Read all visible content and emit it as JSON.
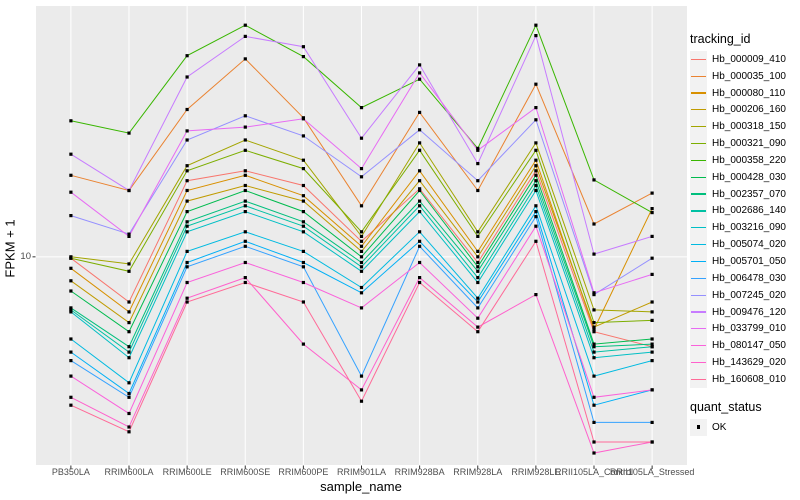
{
  "figure": {
    "y_axis": {
      "label": "FPKM + 1",
      "tick": "10"
    },
    "x_axis": {
      "label": "sample_name"
    },
    "legend": {
      "tracking_title": "tracking_id",
      "quant_title": "quant_status",
      "quant_item": "OK"
    },
    "colors": {
      "panel_bg": "#EBEBEB",
      "grid": "#FFFFFF",
      "point": "#000000",
      "tick_mark": "#333333",
      "tick_text": "#4D4D4D",
      "legend_key_bg": "#F2F2F2"
    }
  },
  "chart_data": {
    "type": "line",
    "title": "",
    "xlabel": "sample_name",
    "ylabel": "FPKM + 1",
    "y_scale": "log10",
    "y_ticks": [
      10
    ],
    "ylim": [
      2.2,
      62
    ],
    "grid": true,
    "legend_position": "right",
    "point_shape": "black-square",
    "quant_status_legend": {
      "title": "quant_status",
      "items": [
        "OK"
      ]
    },
    "x_categories": [
      "PB350LA",
      "RRIM600LA",
      "RRIM600LE",
      "RRIM600SE",
      "RRIM600PE",
      "RRIM901LA",
      "RRIM928BA",
      "RRIM928LA",
      "RRIM928LE",
      "RRII105LA_Control",
      "RRII105LA_Stressed"
    ],
    "series": [
      {
        "name": "Hb_000009_410",
        "color": "#F8766D",
        "values": [
          9.9,
          7.2,
          17.4,
          18.7,
          16.8,
          11.2,
          16.4,
          9.6,
          18.7,
          5.8,
          5.2
        ]
      },
      {
        "name": "Hb_000035_100",
        "color": "#EA8331",
        "values": [
          18.1,
          16.2,
          29.2,
          42.2,
          27.5,
          14.5,
          28.6,
          16.2,
          35.1,
          12.7,
          15.9
        ]
      },
      {
        "name": "Hb_000080_110",
        "color": "#D89000",
        "values": [
          9.2,
          6.7,
          16.2,
          18.1,
          15.6,
          10.8,
          18.7,
          10.4,
          20.2,
          5.9,
          14.2
        ]
      },
      {
        "name": "Hb_000206_160",
        "color": "#C09B00",
        "values": [
          8.4,
          6.2,
          15.0,
          16.8,
          15.0,
          10.4,
          17.4,
          10.0,
          19.4,
          6.0,
          7.2
        ]
      },
      {
        "name": "Hb_000318_150",
        "color": "#A3A500",
        "values": [
          10.0,
          9.5,
          19.4,
          23.4,
          20.2,
          11.6,
          22.9,
          12.0,
          22.9,
          6.8,
          6.7
        ]
      },
      {
        "name": "Hb_000321_090",
        "color": "#7CAE00",
        "values": [
          9.9,
          9.0,
          18.7,
          21.7,
          19.0,
          12.0,
          21.7,
          11.6,
          21.7,
          6.2,
          6.3
        ]
      },
      {
        "name": "Hb_000358_220",
        "color": "#39B600",
        "values": [
          26.9,
          24.6,
          43.2,
          53.9,
          42.9,
          29.6,
          36.4,
          22.0,
          53.9,
          17.5,
          13.8
        ]
      },
      {
        "name": "Hb_000428_030",
        "color": "#00BB4E",
        "values": [
          7.8,
          5.8,
          13.9,
          16.2,
          13.9,
          10.0,
          16.2,
          9.3,
          18.1,
          5.3,
          5.5
        ]
      },
      {
        "name": "Hb_002357_070",
        "color": "#00BF7D",
        "values": [
          6.9,
          5.2,
          12.9,
          15.0,
          12.9,
          9.6,
          15.0,
          9.0,
          17.4,
          5.2,
          5.3
        ]
      },
      {
        "name": "Hb_002686_140",
        "color": "#00C1A3",
        "values": [
          6.8,
          5.0,
          12.5,
          14.5,
          12.5,
          9.3,
          14.5,
          8.6,
          16.8,
          5.0,
          5.2
        ]
      },
      {
        "name": "Hb_003216_090",
        "color": "#00BFC4",
        "values": [
          6.7,
          4.8,
          12.0,
          13.9,
          12.0,
          9.0,
          13.9,
          8.3,
          16.2,
          4.8,
          5.0
        ]
      },
      {
        "name": "Hb_005074_020",
        "color": "#00BAE0",
        "values": [
          5.5,
          4.0,
          10.4,
          12.0,
          10.4,
          8.0,
          12.0,
          7.4,
          14.5,
          4.2,
          4.7
        ]
      },
      {
        "name": "Hb_005701_050",
        "color": "#00B0F6",
        "values": [
          5.0,
          3.7,
          9.6,
          11.2,
          9.6,
          7.7,
          11.2,
          7.2,
          13.9,
          3.4,
          3.8
        ]
      },
      {
        "name": "Hb_006478_030",
        "color": "#35A2FF",
        "values": [
          4.7,
          3.6,
          9.3,
          10.8,
          9.3,
          4.2,
          10.8,
          6.9,
          13.4,
          3.0,
          3.0
        ]
      },
      {
        "name": "Hb_007245_020",
        "color": "#9590FF",
        "values": [
          13.5,
          11.8,
          23.4,
          27.9,
          24.1,
          17.9,
          25.2,
          17.4,
          27.1,
          7.6,
          9.9
        ]
      },
      {
        "name": "Hb_009476_120",
        "color": "#C77CFF",
        "values": [
          21.1,
          16.2,
          37.0,
          49.7,
          46.1,
          23.7,
          40.4,
          19.7,
          50.0,
          10.2,
          11.6
        ]
      },
      {
        "name": "Hb_033799_010",
        "color": "#E76BF3",
        "values": [
          16.0,
          11.6,
          25.0,
          25.7,
          27.3,
          19.0,
          38.1,
          21.7,
          29.6,
          7.7,
          8.8
        ]
      },
      {
        "name": "Hb_080147_050",
        "color": "#FA62DB",
        "values": [
          4.2,
          3.2,
          8.3,
          9.6,
          8.3,
          6.9,
          9.6,
          6.4,
          12.5,
          3.6,
          3.8
        ]
      },
      {
        "name": "Hb_143629_020",
        "color": "#FF61CC",
        "values": [
          3.6,
          2.9,
          7.4,
          8.6,
          5.3,
          3.8,
          8.6,
          6.0,
          7.6,
          2.4,
          2.6
        ]
      },
      {
        "name": "Hb_160608_010",
        "color": "#FF6A98",
        "values": [
          3.4,
          2.8,
          7.2,
          8.3,
          7.2,
          3.5,
          8.3,
          5.8,
          11.2,
          2.6,
          2.6
        ]
      }
    ]
  }
}
